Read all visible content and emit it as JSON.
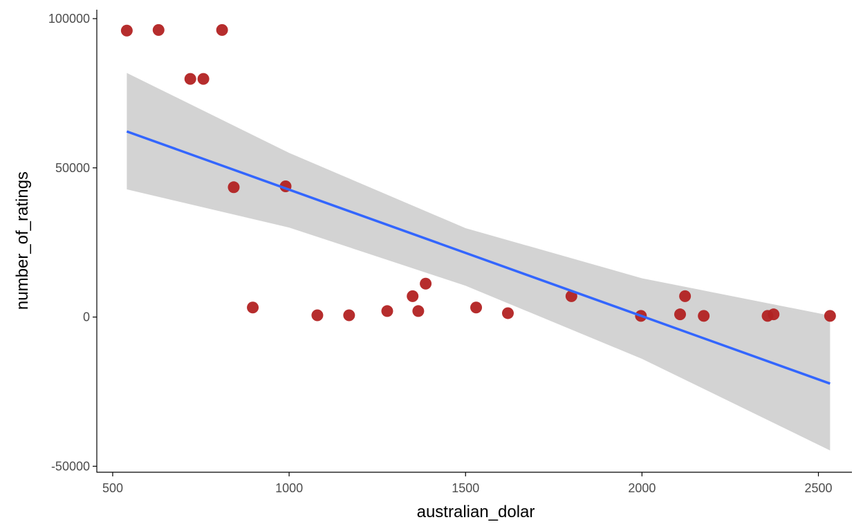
{
  "chart_data": {
    "type": "scatter",
    "title": "",
    "xlabel": "australian_dolar",
    "ylabel": "number_of_ratings",
    "xlim": [
      455,
      2595
    ],
    "ylim": [
      -52000,
      103000
    ],
    "x_ticks": [
      500,
      1000,
      1500,
      2000,
      2500
    ],
    "x_tick_labels": [
      "500",
      "1000",
      "1500",
      "2000",
      "2500"
    ],
    "y_ticks": [
      -50000,
      0,
      50000,
      100000
    ],
    "y_tick_labels": [
      "-50000",
      "0",
      "50000",
      "100000"
    ],
    "grid": false,
    "legend": "none",
    "points": [
      {
        "x": 540,
        "y": 96000
      },
      {
        "x": 630,
        "y": 96200
      },
      {
        "x": 720,
        "y": 79800
      },
      {
        "x": 757,
        "y": 79800
      },
      {
        "x": 810,
        "y": 96200
      },
      {
        "x": 843,
        "y": 43500
      },
      {
        "x": 897,
        "y": 3200
      },
      {
        "x": 990,
        "y": 43800
      },
      {
        "x": 1080,
        "y": 600
      },
      {
        "x": 1170,
        "y": 600
      },
      {
        "x": 1278,
        "y": 2000
      },
      {
        "x": 1350,
        "y": 7000
      },
      {
        "x": 1366,
        "y": 2000
      },
      {
        "x": 1387,
        "y": 11200
      },
      {
        "x": 1530,
        "y": 3200
      },
      {
        "x": 1620,
        "y": 1300
      },
      {
        "x": 1800,
        "y": 7000
      },
      {
        "x": 1997,
        "y": 400
      },
      {
        "x": 2108,
        "y": 900
      },
      {
        "x": 2122,
        "y": 7000
      },
      {
        "x": 2175,
        "y": 400
      },
      {
        "x": 2356,
        "y": 400
      },
      {
        "x": 2373,
        "y": 900
      },
      {
        "x": 2533,
        "y": 400
      }
    ],
    "regression_line": {
      "x": [
        540,
        2533
      ],
      "y": [
        62200,
        -22300
      ]
    },
    "confidence_band": {
      "x": [
        540,
        1000,
        1500,
        2000,
        2533
      ],
      "upper": [
        81800,
        55000,
        29800,
        13000,
        500
      ],
      "lower": [
        42800,
        30000,
        10500,
        -14000,
        -44700
      ]
    },
    "colors": {
      "points": "#b22222",
      "line": "#3366ff",
      "band": "#d3d3d3",
      "axis": "#000000",
      "tick_text": "#4d4d4d"
    }
  }
}
